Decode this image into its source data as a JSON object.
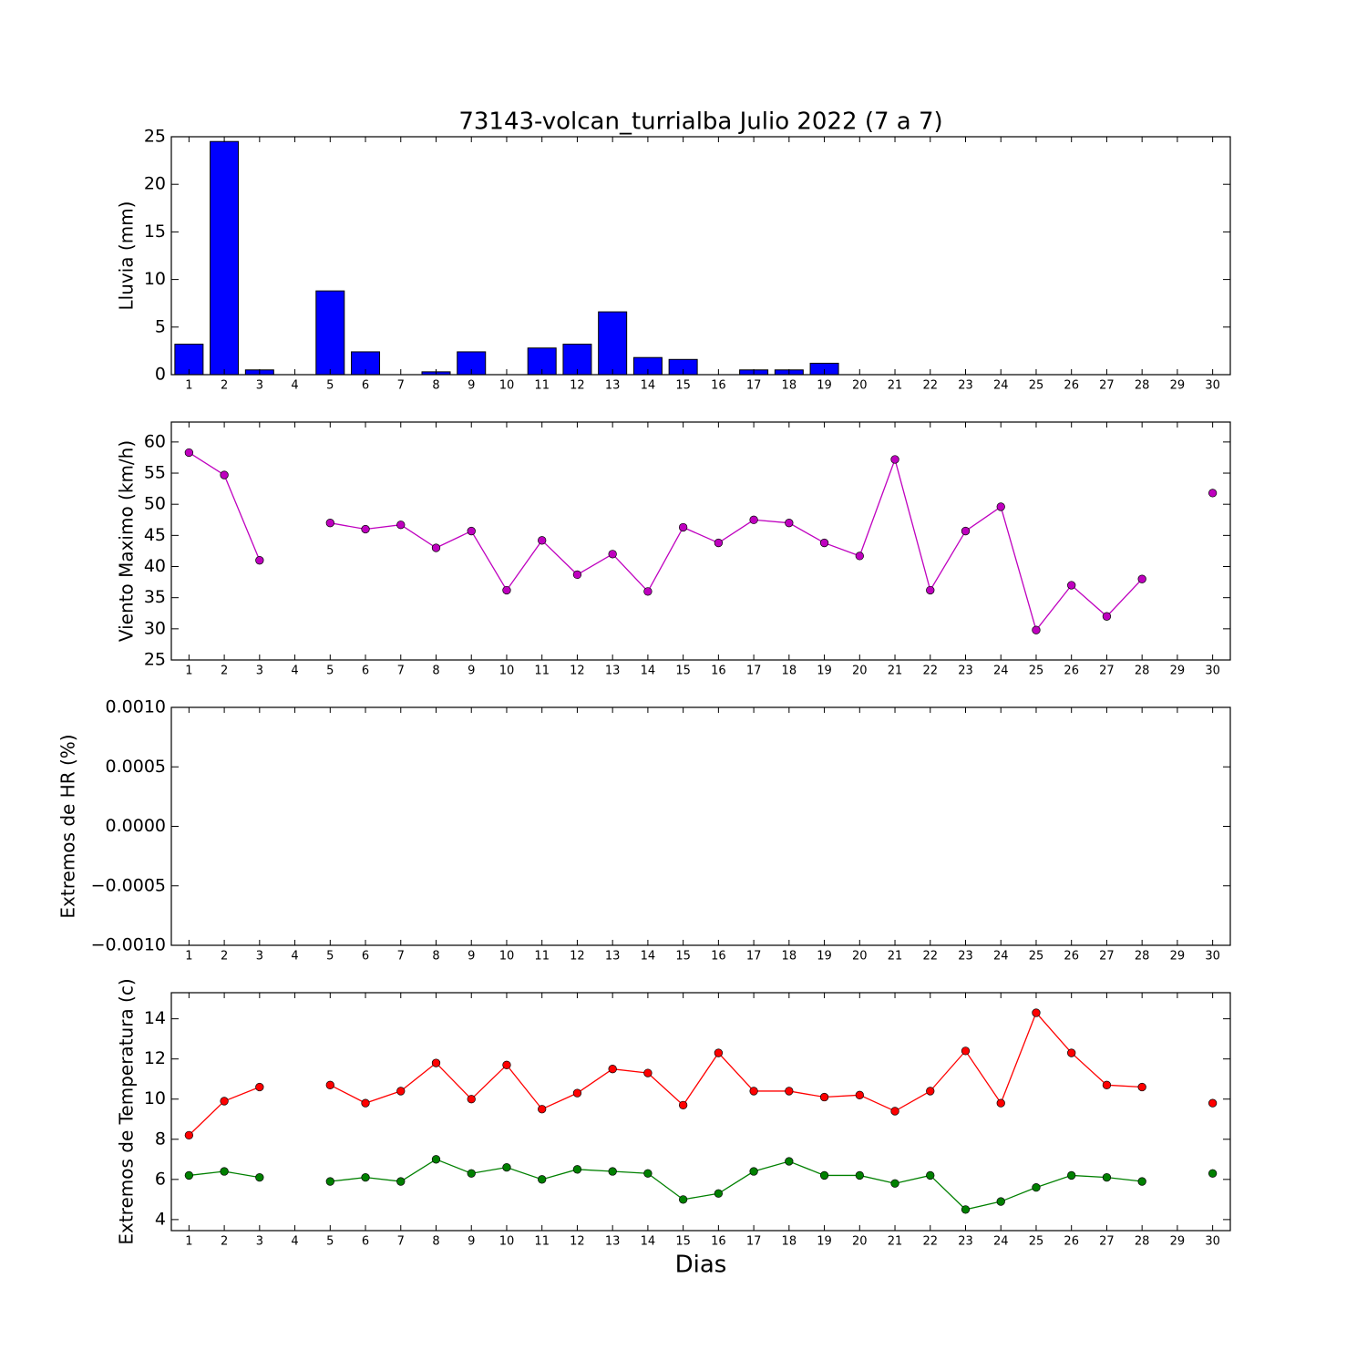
{
  "chart_data": [
    {
      "type": "bar",
      "title": "73143-volcan_turrialba Julio 2022  (7 a 7)",
      "y_label": "Lluvia (mm)",
      "x": [
        1,
        2,
        3,
        4,
        5,
        6,
        7,
        8,
        9,
        10,
        11,
        12,
        13,
        14,
        15,
        16,
        17,
        18,
        19,
        20,
        21,
        22,
        23,
        24,
        25,
        26,
        27,
        28,
        29,
        30
      ],
      "values": [
        3.2,
        24.5,
        0.5,
        null,
        8.8,
        2.4,
        0,
        0.3,
        2.4,
        0,
        2.8,
        3.2,
        6.6,
        1.8,
        1.6,
        0,
        0.5,
        0.5,
        1.2,
        0,
        0,
        0,
        0,
        0,
        0,
        0,
        0,
        0,
        null,
        0
      ],
      "color": "#0000ff",
      "xlim": [
        0.5,
        30.5
      ],
      "xticks": [
        1,
        2,
        3,
        4,
        5,
        6,
        7,
        8,
        9,
        10,
        11,
        12,
        13,
        14,
        15,
        16,
        17,
        18,
        19,
        20,
        21,
        22,
        23,
        24,
        25,
        26,
        27,
        28,
        29,
        30
      ],
      "ylim": [
        0,
        25
      ],
      "yticks": [
        0,
        5,
        10,
        15,
        20,
        25
      ]
    },
    {
      "type": "line",
      "y_label": "Viento Maximo (km/h)",
      "x": [
        1,
        2,
        3,
        4,
        5,
        6,
        7,
        8,
        9,
        10,
        11,
        12,
        13,
        14,
        15,
        16,
        17,
        18,
        19,
        20,
        21,
        22,
        23,
        24,
        25,
        26,
        27,
        28,
        29,
        30
      ],
      "series": [
        {
          "color": "#bf00bf",
          "values": [
            58.3,
            54.7,
            41,
            null,
            47,
            46,
            46.7,
            43,
            45.7,
            36.2,
            44.2,
            38.7,
            42,
            36,
            46.3,
            43.8,
            47.5,
            47,
            43.8,
            41.7,
            57.2,
            36.2,
            45.7,
            49.6,
            29.8,
            37,
            32,
            38,
            null,
            51.8
          ]
        }
      ],
      "xlim": [
        0.5,
        30.5
      ],
      "xticks": [
        1,
        2,
        3,
        4,
        5,
        6,
        7,
        8,
        9,
        10,
        11,
        12,
        13,
        14,
        15,
        16,
        17,
        18,
        19,
        20,
        21,
        22,
        23,
        24,
        25,
        26,
        27,
        28,
        29,
        30
      ],
      "ylim": [
        25,
        63.2
      ],
      "yticks": [
        25,
        30,
        35,
        40,
        45,
        50,
        55,
        60
      ]
    },
    {
      "type": "line",
      "y_label": "Extremos de HR (%)",
      "series": [],
      "xlim": [
        0.5,
        30.5
      ],
      "xticks": [
        1,
        2,
        3,
        4,
        5,
        6,
        7,
        8,
        9,
        10,
        11,
        12,
        13,
        14,
        15,
        16,
        17,
        18,
        19,
        20,
        21,
        22,
        23,
        24,
        25,
        26,
        27,
        28,
        29,
        30
      ],
      "ylim": [
        -0.001,
        0.001
      ],
      "yticks": [
        {
          "value": -0.001,
          "label": "−0.0010"
        },
        {
          "value": -0.0005,
          "label": "−0.0005"
        },
        {
          "value": 0,
          "label": "0.0000"
        },
        {
          "value": 0.0005,
          "label": "0.0005"
        },
        {
          "value": 0.001,
          "label": "0.0010"
        }
      ]
    },
    {
      "type": "line",
      "y_label": "Extremos de Temperatura (c)",
      "x_label": "Dias",
      "x": [
        1,
        2,
        3,
        4,
        5,
        6,
        7,
        8,
        9,
        10,
        11,
        12,
        13,
        14,
        15,
        16,
        17,
        18,
        19,
        20,
        21,
        22,
        23,
        24,
        25,
        26,
        27,
        28,
        29,
        30
      ],
      "series": [
        {
          "color": "#ff0000",
          "values": [
            8.2,
            9.9,
            10.6,
            null,
            10.7,
            9.8,
            10.4,
            11.8,
            10,
            11.7,
            9.5,
            10.3,
            11.5,
            11.3,
            9.7,
            12.3,
            10.4,
            10.4,
            10.1,
            10.2,
            9.4,
            10.4,
            12.4,
            9.8,
            14.3,
            12.3,
            10.7,
            10.6,
            null,
            9.8
          ]
        },
        {
          "color": "#008000",
          "values": [
            6.2,
            6.4,
            6.1,
            null,
            5.9,
            6.1,
            5.9,
            7.0,
            6.3,
            6.6,
            6.0,
            6.5,
            6.4,
            6.3,
            5.0,
            5.3,
            6.4,
            6.9,
            6.2,
            6.2,
            5.8,
            6.2,
            4.5,
            4.9,
            5.6,
            6.2,
            6.1,
            5.9,
            null,
            6.3
          ]
        }
      ],
      "xlim": [
        0.5,
        30.5
      ],
      "xticks": [
        1,
        2,
        3,
        4,
        5,
        6,
        7,
        8,
        9,
        10,
        11,
        12,
        13,
        14,
        15,
        16,
        17,
        18,
        19,
        20,
        21,
        22,
        23,
        24,
        25,
        26,
        27,
        28,
        29,
        30
      ],
      "ylim": [
        3.45,
        15.3
      ],
      "yticks": [
        4,
        6,
        8,
        10,
        12,
        14
      ]
    }
  ]
}
